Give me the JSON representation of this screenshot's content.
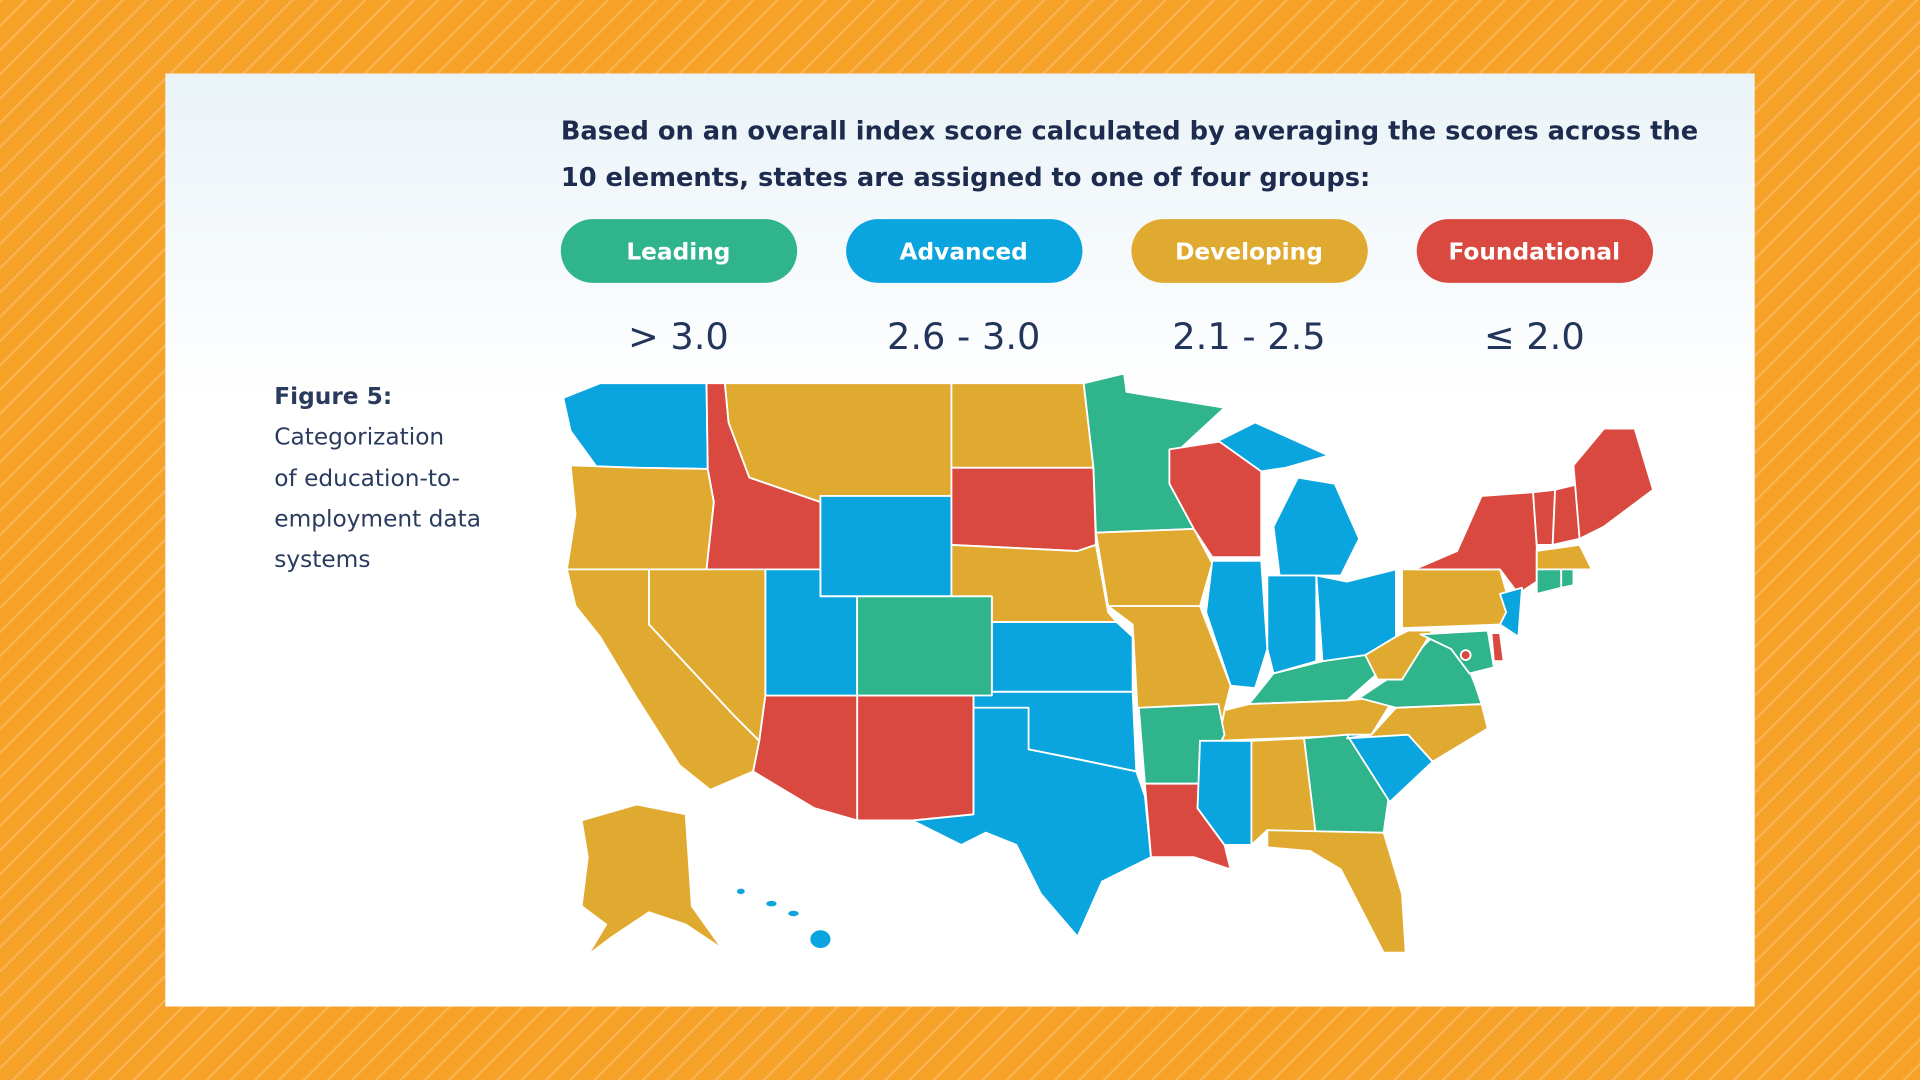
{
  "intro": [
    "Based on an overall index score calculated by averaging the scores across the",
    "10 elements, states are assigned to one of four groups:"
  ],
  "groups": [
    {
      "label": "Leading",
      "range": "> 3.0",
      "color": "#2fb48c"
    },
    {
      "label": "Advanced",
      "range": "2.6 - 3.0",
      "color": "#0aa5de"
    },
    {
      "label": "Developing",
      "range": "2.1 - 2.5",
      "color": "#e0aa30"
    },
    {
      "label": "Foundational",
      "range": "≤ 2.0",
      "color": "#d9493f"
    }
  ],
  "figure": {
    "label": "Figure 5:",
    "caption": [
      "Categorization",
      "of education-to-",
      "employment data",
      "systems"
    ]
  }
}
